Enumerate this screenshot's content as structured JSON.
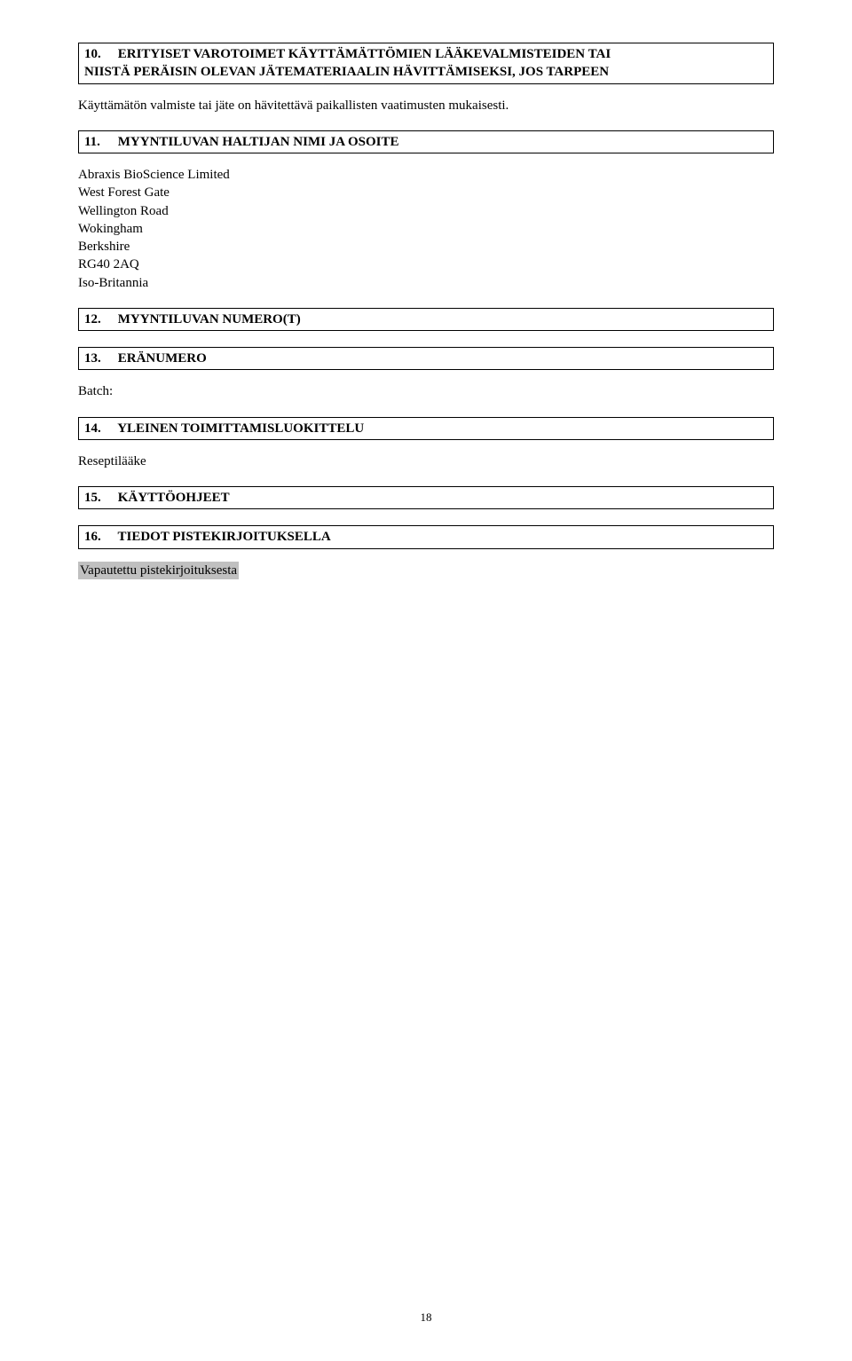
{
  "sections": {
    "s10": {
      "num": "10.",
      "title_line1": "ERITYISET VAROTOIMET KÄYTTÄMÄTTÖMIEN LÄÄKEVALMISTEIDEN TAI",
      "title_line2": "NIISTÄ PERÄISIN OLEVAN JÄTEMATERIAALIN HÄVITTÄMISEKSI, JOS TARPEEN",
      "body": "Käyttämätön valmiste tai jäte on hävitettävä paikallisten vaatimusten mukaisesti."
    },
    "s11": {
      "num": "11.",
      "title": "MYYNTILUVAN HALTIJAN NIMI JA OSOITE",
      "address": [
        "Abraxis BioScience Limited",
        "West Forest Gate",
        "Wellington Road",
        "Wokingham",
        "Berkshire",
        "RG40 2AQ",
        "Iso-Britannia"
      ]
    },
    "s12": {
      "num": "12.",
      "title": "MYYNTILUVAN NUMERO(T)"
    },
    "s13": {
      "num": "13.",
      "title": "ERÄNUMERO",
      "body": "Batch:"
    },
    "s14": {
      "num": "14.",
      "title": "YLEINEN TOIMITTAMISLUOKITTELU",
      "body": "Reseptilääke"
    },
    "s15": {
      "num": "15.",
      "title": "KÄYTTÖOHJEET"
    },
    "s16": {
      "num": "16.",
      "title": "TIEDOT PISTEKIRJOITUKSELLA",
      "body": "Vapautettu pistekirjoituksesta"
    }
  },
  "page_number": "18"
}
